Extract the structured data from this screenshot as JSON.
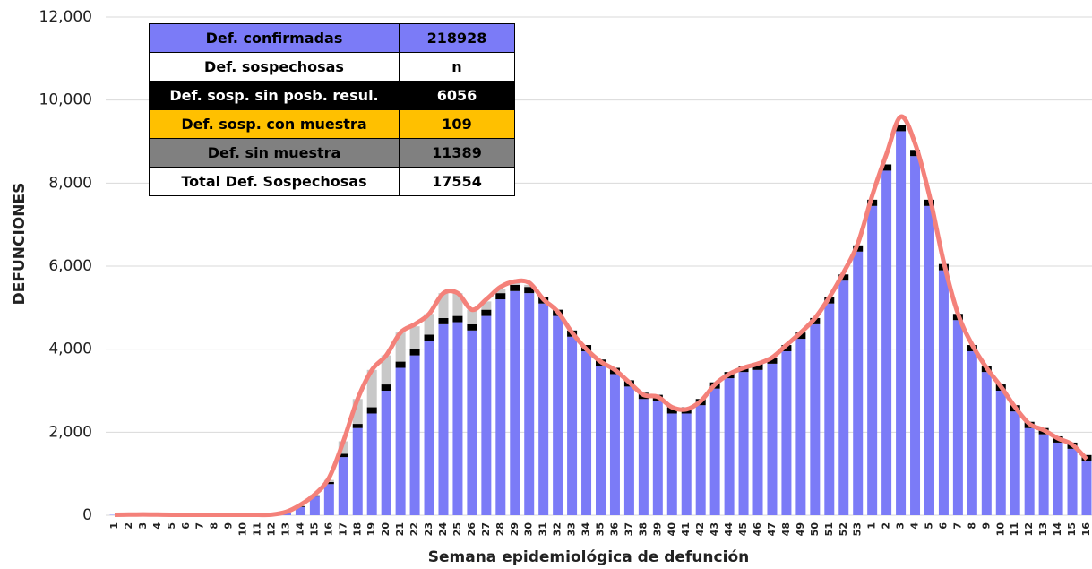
{
  "chart_data": {
    "type": "bar",
    "y_axis_label": "DEFUNCIONES",
    "x_axis_label": "Semana epidemiológica de defunción",
    "categories": [
      "1",
      "2",
      "3",
      "4",
      "5",
      "6",
      "7",
      "8",
      "9",
      "10",
      "11",
      "12",
      "13",
      "14",
      "15",
      "16",
      "17",
      "18",
      "19",
      "20",
      "21",
      "22",
      "23",
      "24",
      "25",
      "26",
      "27",
      "28",
      "29",
      "30",
      "31",
      "32",
      "33",
      "34",
      "35",
      "36",
      "37",
      "38",
      "39",
      "40",
      "41",
      "42",
      "43",
      "44",
      "45",
      "46",
      "47",
      "48",
      "49",
      "50",
      "51",
      "52",
      "53",
      "1",
      "2",
      "3",
      "4",
      "5",
      "6",
      "7",
      "8",
      "9",
      "10",
      "11",
      "12",
      "13",
      "14",
      "15",
      "16"
    ],
    "series": [
      {
        "color": "#7b7bf7",
        "values": [
          10,
          15,
          20,
          15,
          10,
          10,
          10,
          10,
          10,
          10,
          10,
          15,
          60,
          200,
          450,
          750,
          1400,
          2100,
          2450,
          3000,
          3550,
          3850,
          4200,
          4600,
          4650,
          4450,
          4800,
          5200,
          5400,
          5350,
          5100,
          4800,
          4300,
          3950,
          3600,
          3400,
          3100,
          2800,
          2750,
          2450,
          2450,
          2650,
          3050,
          3300,
          3450,
          3500,
          3650,
          3950,
          4250,
          4600,
          5100,
          5650,
          6350,
          7450,
          8300,
          9250,
          8650,
          7450,
          5900,
          4700,
          3950,
          3450,
          3000,
          2500,
          2100,
          1950,
          1750,
          1600,
          1300
        ]
      },
      {
        "color": "#000000",
        "values": [
          0,
          0,
          0,
          0,
          0,
          0,
          0,
          0,
          0,
          0,
          0,
          0,
          0,
          20,
          30,
          50,
          80,
          100,
          150,
          150,
          150,
          150,
          150,
          150,
          150,
          150,
          150,
          150,
          150,
          150,
          150,
          150,
          150,
          150,
          150,
          150,
          150,
          150,
          150,
          150,
          150,
          150,
          150,
          150,
          150,
          150,
          150,
          150,
          150,
          150,
          150,
          150,
          150,
          150,
          150,
          150,
          150,
          150,
          150,
          150,
          150,
          150,
          150,
          150,
          150,
          150,
          150,
          150,
          150
        ]
      },
      {
        "color": "#c8c8c8",
        "values": [
          0,
          0,
          0,
          0,
          0,
          0,
          0,
          0,
          0,
          0,
          0,
          0,
          0,
          0,
          0,
          50,
          300,
          600,
          900,
          700,
          700,
          550,
          500,
          600,
          550,
          350,
          200,
          100,
          80,
          50,
          0,
          0,
          0,
          0,
          0,
          0,
          0,
          0,
          0,
          0,
          0,
          0,
          0,
          0,
          0,
          0,
          0,
          0,
          0,
          0,
          0,
          0,
          0,
          0,
          0,
          0,
          0,
          0,
          0,
          0,
          0,
          0,
          0,
          0,
          0,
          0,
          0,
          0,
          0
        ]
      },
      {
        "type": "line",
        "color": "#f4817a",
        "values": [
          10,
          15,
          20,
          15,
          10,
          10,
          10,
          10,
          10,
          10,
          10,
          15,
          80,
          250,
          500,
          900,
          1780,
          2800,
          3500,
          3850,
          4400,
          4600,
          4850,
          5350,
          5350,
          4950,
          5200,
          5500,
          5630,
          5600,
          5200,
          4900,
          4400,
          4000,
          3700,
          3500,
          3200,
          2900,
          2850,
          2600,
          2550,
          2750,
          3150,
          3400,
          3550,
          3650,
          3800,
          4100,
          4400,
          4750,
          5250,
          5850,
          6550,
          7700,
          8700,
          9600,
          8950,
          7700,
          6100,
          4850,
          4100,
          3550,
          3100,
          2600,
          2200,
          2050,
          1850,
          1700,
          1350
        ]
      }
    ],
    "ylim": [
      0,
      12000
    ],
    "yticks": [
      0,
      {
        "value": 2000,
        "label": "2,000"
      },
      {
        "value": 4000,
        "label": "4,000"
      },
      {
        "value": 6000,
        "label": "6,000"
      },
      {
        "value": 8000,
        "label": "8,000"
      },
      {
        "value": 10000,
        "label": "10,000"
      },
      {
        "value": 12000,
        "label": "12,000"
      }
    ],
    "grid": true
  },
  "table": {
    "rows": [
      [
        "Def. confirmadas",
        "218928"
      ],
      [
        "Def. sospechosas",
        "n"
      ],
      [
        "Def. sosp. sin posb. resul.",
        "6056"
      ],
      [
        "Def. sosp. con  muestra",
        "109"
      ],
      [
        "Def. sin muestra",
        "11389"
      ],
      [
        "Total Def. Sospechosas",
        "17554"
      ]
    ]
  }
}
